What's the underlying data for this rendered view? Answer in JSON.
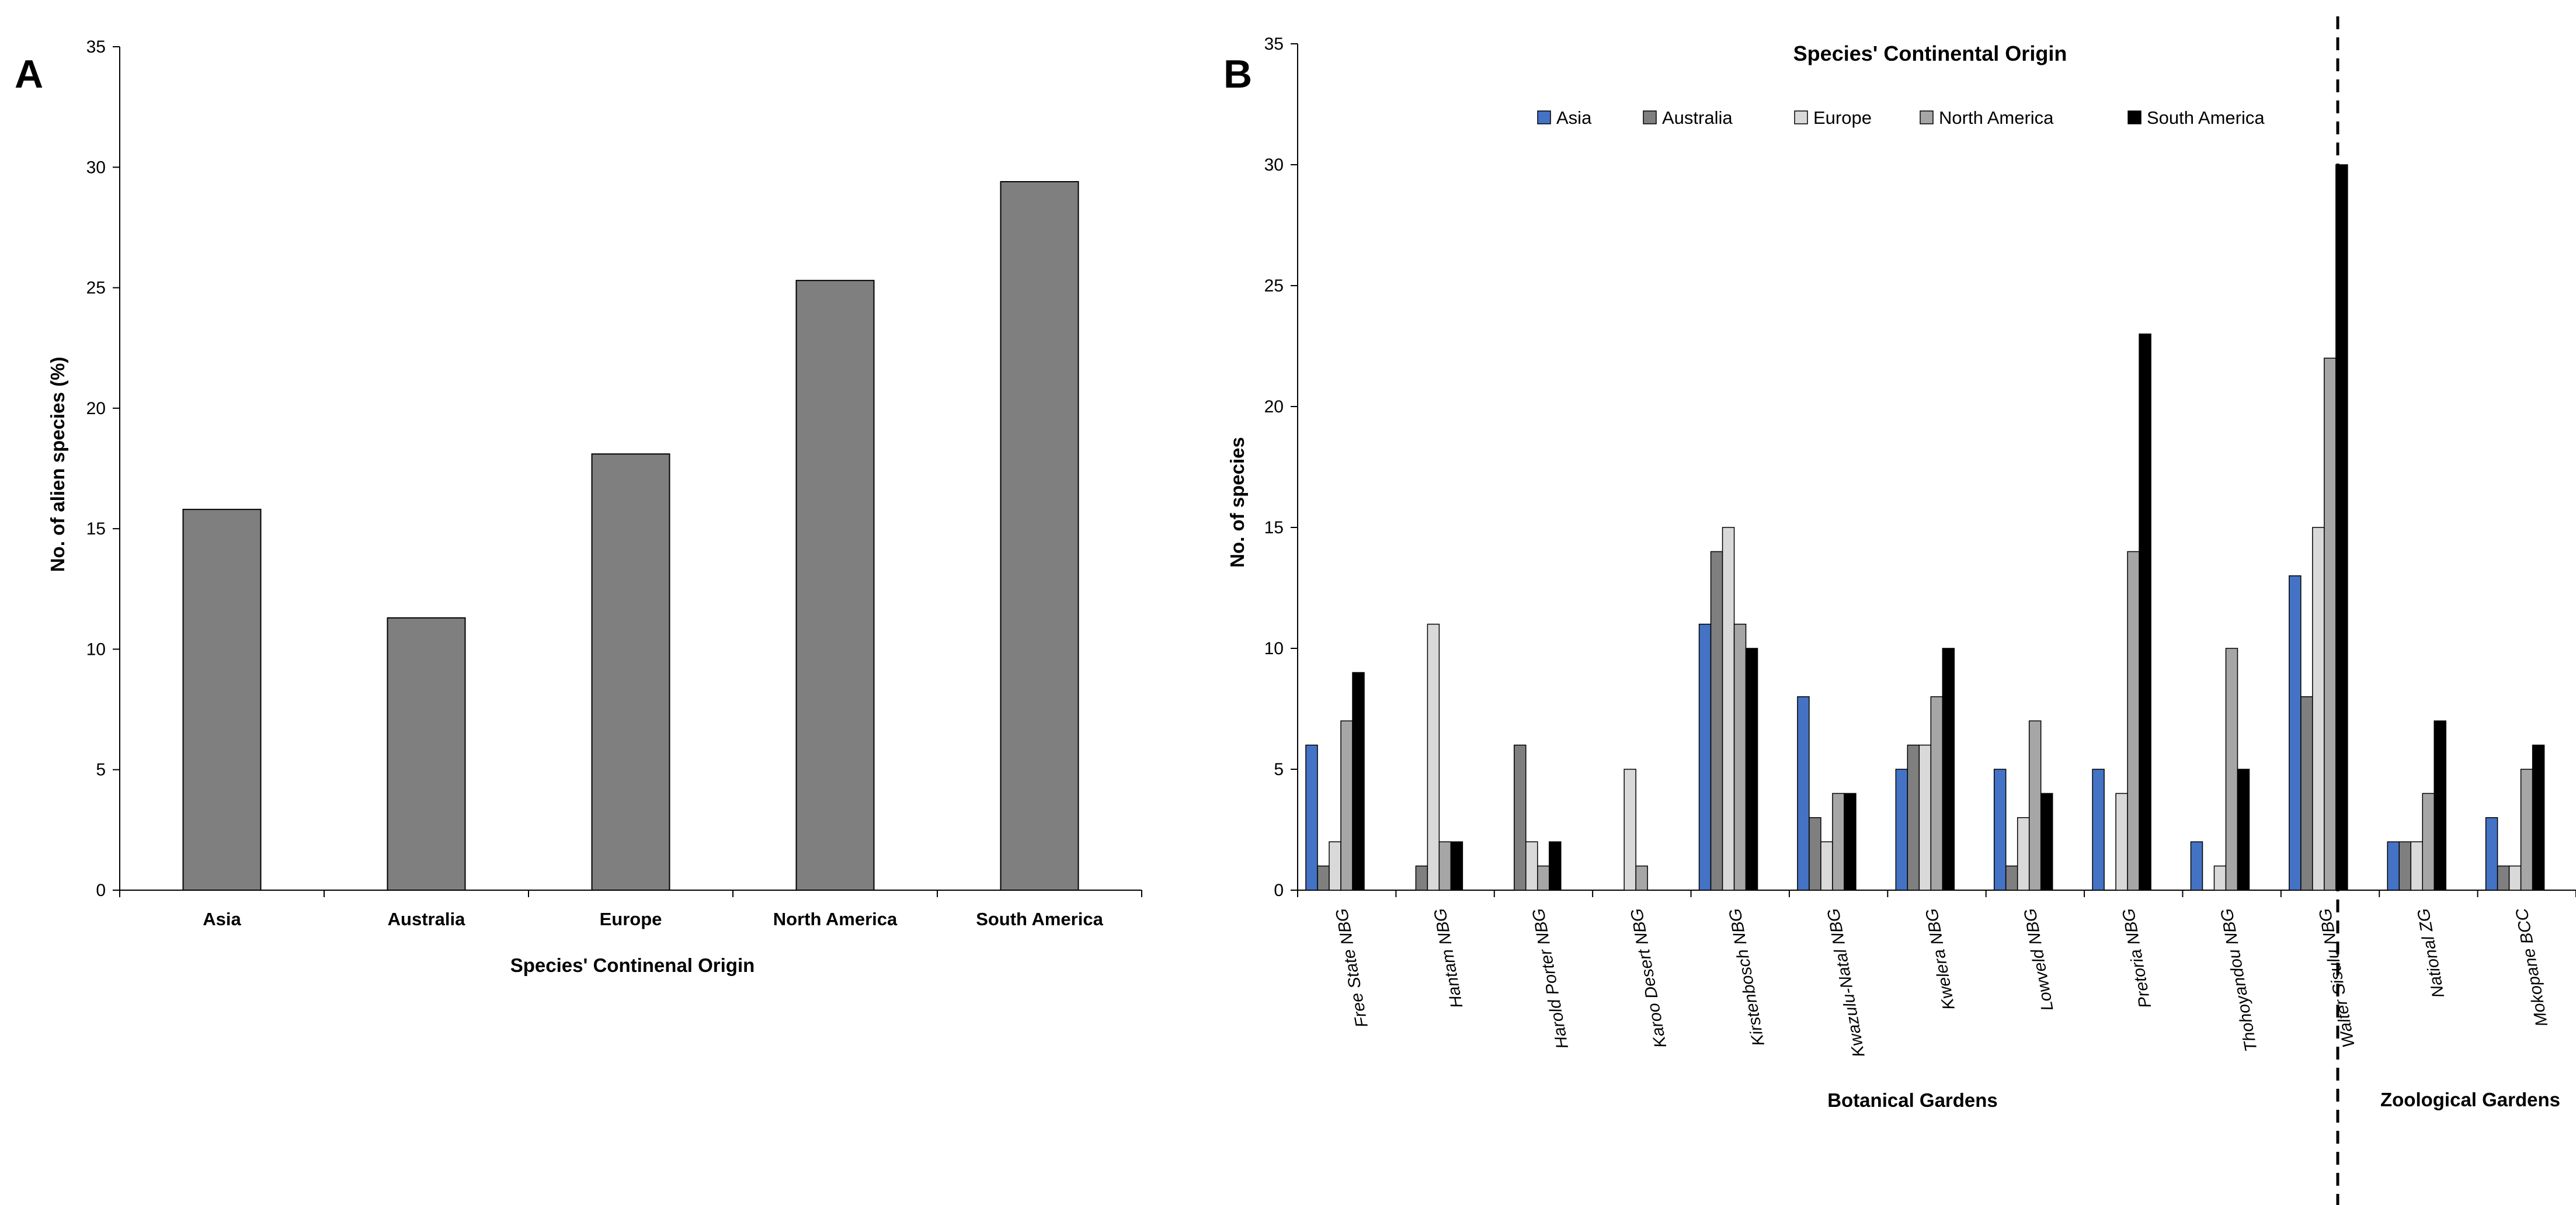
{
  "chart_data": [
    {
      "type": "bar",
      "panel_label": "A",
      "title": "",
      "categories": [
        "Asia",
        "Australia",
        "Europe",
        "North America",
        "South America"
      ],
      "values": [
        15.8,
        11.3,
        18.1,
        25.3,
        29.4
      ],
      "xlabel": "Species' Continenal Origin",
      "ylabel": "No. of alien species (%)",
      "ylim": [
        0,
        35
      ],
      "yticks": [
        "0",
        "5",
        "10",
        "15",
        "20",
        "25",
        "30",
        "35"
      ],
      "bar_color": "#7f7f7f",
      "grid": false
    },
    {
      "type": "bar",
      "panel_label": "B",
      "legend_title": "Species' Continental Origin",
      "legend_position": "top",
      "categories": [
        "Free State NBG",
        "Hantam NBG",
        "Harold Porter NBG",
        "Karoo Desert NBG",
        "Kirstenbosch NBG",
        "Kwazulu-Natal NBG",
        "Kwelera NBG",
        "Lowveld NBG",
        "Pretoria NBG",
        "Thohoyandou NBG",
        "Walter Sisulu NBG",
        "National ZG",
        "Mokopane BCC"
      ],
      "series": [
        {
          "name": "Asia",
          "color": "#4472c4",
          "values": [
            6,
            0,
            0,
            0,
            11,
            8,
            5,
            5,
            5,
            2,
            13,
            2,
            3
          ]
        },
        {
          "name": "Australia",
          "color": "#7f7f7f",
          "values": [
            1,
            1,
            6,
            0,
            14,
            3,
            6,
            1,
            0,
            0,
            8,
            2,
            1
          ]
        },
        {
          "name": "Europe",
          "color": "#d9d9d9",
          "values": [
            2,
            11,
            2,
            5,
            15,
            2,
            6,
            3,
            4,
            1,
            15,
            2,
            1
          ]
        },
        {
          "name": "North America",
          "color": "#a6a6a6",
          "values": [
            7,
            2,
            1,
            1,
            11,
            4,
            8,
            7,
            14,
            10,
            22,
            4,
            5
          ]
        },
        {
          "name": "South America",
          "color": "#000000",
          "values": [
            9,
            2,
            2,
            0,
            10,
            4,
            10,
            4,
            23,
            5,
            30,
            7,
            6
          ]
        }
      ],
      "xlabel": "",
      "ylabel": "No. of species",
      "ylim": [
        0,
        35
      ],
      "yticks": [
        "0",
        "5",
        "10",
        "15",
        "20",
        "25",
        "30",
        "35"
      ],
      "groups": [
        {
          "label": "Botanical Gardens",
          "count": 11
        },
        {
          "label": "Zoological Gardens",
          "count": 2
        }
      ],
      "grid": false
    }
  ]
}
